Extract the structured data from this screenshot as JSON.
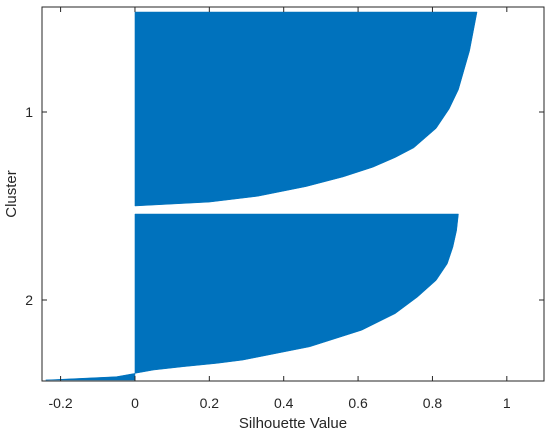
{
  "chart_data": {
    "type": "area",
    "title": "",
    "xlabel": "Silhouette Value",
    "ylabel": "Cluster",
    "xlim": [
      -0.25,
      1.1
    ],
    "xticks": [
      -0.2,
      0,
      0.2,
      0.4,
      0.6,
      0.8,
      1
    ],
    "xtick_labels": [
      "-0.2",
      "0",
      "0.2",
      "0.4",
      "0.6",
      "0.8",
      "1"
    ],
    "ytick_labels": [
      "1",
      "2"
    ],
    "grid": false,
    "legend": "none",
    "fill_color": "#0072bd",
    "clusters": [
      {
        "label": "1",
        "profile": [
          [
            0.0,
            0.92
          ],
          [
            0.1,
            0.91
          ],
          [
            0.2,
            0.9
          ],
          [
            0.3,
            0.885
          ],
          [
            0.4,
            0.87
          ],
          [
            0.5,
            0.845
          ],
          [
            0.6,
            0.81
          ],
          [
            0.7,
            0.75
          ],
          [
            0.75,
            0.7
          ],
          [
            0.8,
            0.64
          ],
          [
            0.85,
            0.56
          ],
          [
            0.9,
            0.46
          ],
          [
            0.95,
            0.33
          ],
          [
            0.98,
            0.2
          ],
          [
            1.0,
            0.0
          ]
        ]
      },
      {
        "label": "2",
        "profile": [
          [
            0.0,
            0.87
          ],
          [
            0.1,
            0.865
          ],
          [
            0.2,
            0.855
          ],
          [
            0.3,
            0.84
          ],
          [
            0.4,
            0.81
          ],
          [
            0.5,
            0.76
          ],
          [
            0.6,
            0.7
          ],
          [
            0.7,
            0.61
          ],
          [
            0.8,
            0.47
          ],
          [
            0.88,
            0.29
          ],
          [
            0.9,
            0.22
          ],
          [
            0.92,
            0.13
          ],
          [
            0.94,
            0.05
          ],
          [
            0.96,
            0.0
          ],
          [
            0.98,
            -0.05
          ],
          [
            1.0,
            -0.24
          ]
        ]
      }
    ]
  }
}
